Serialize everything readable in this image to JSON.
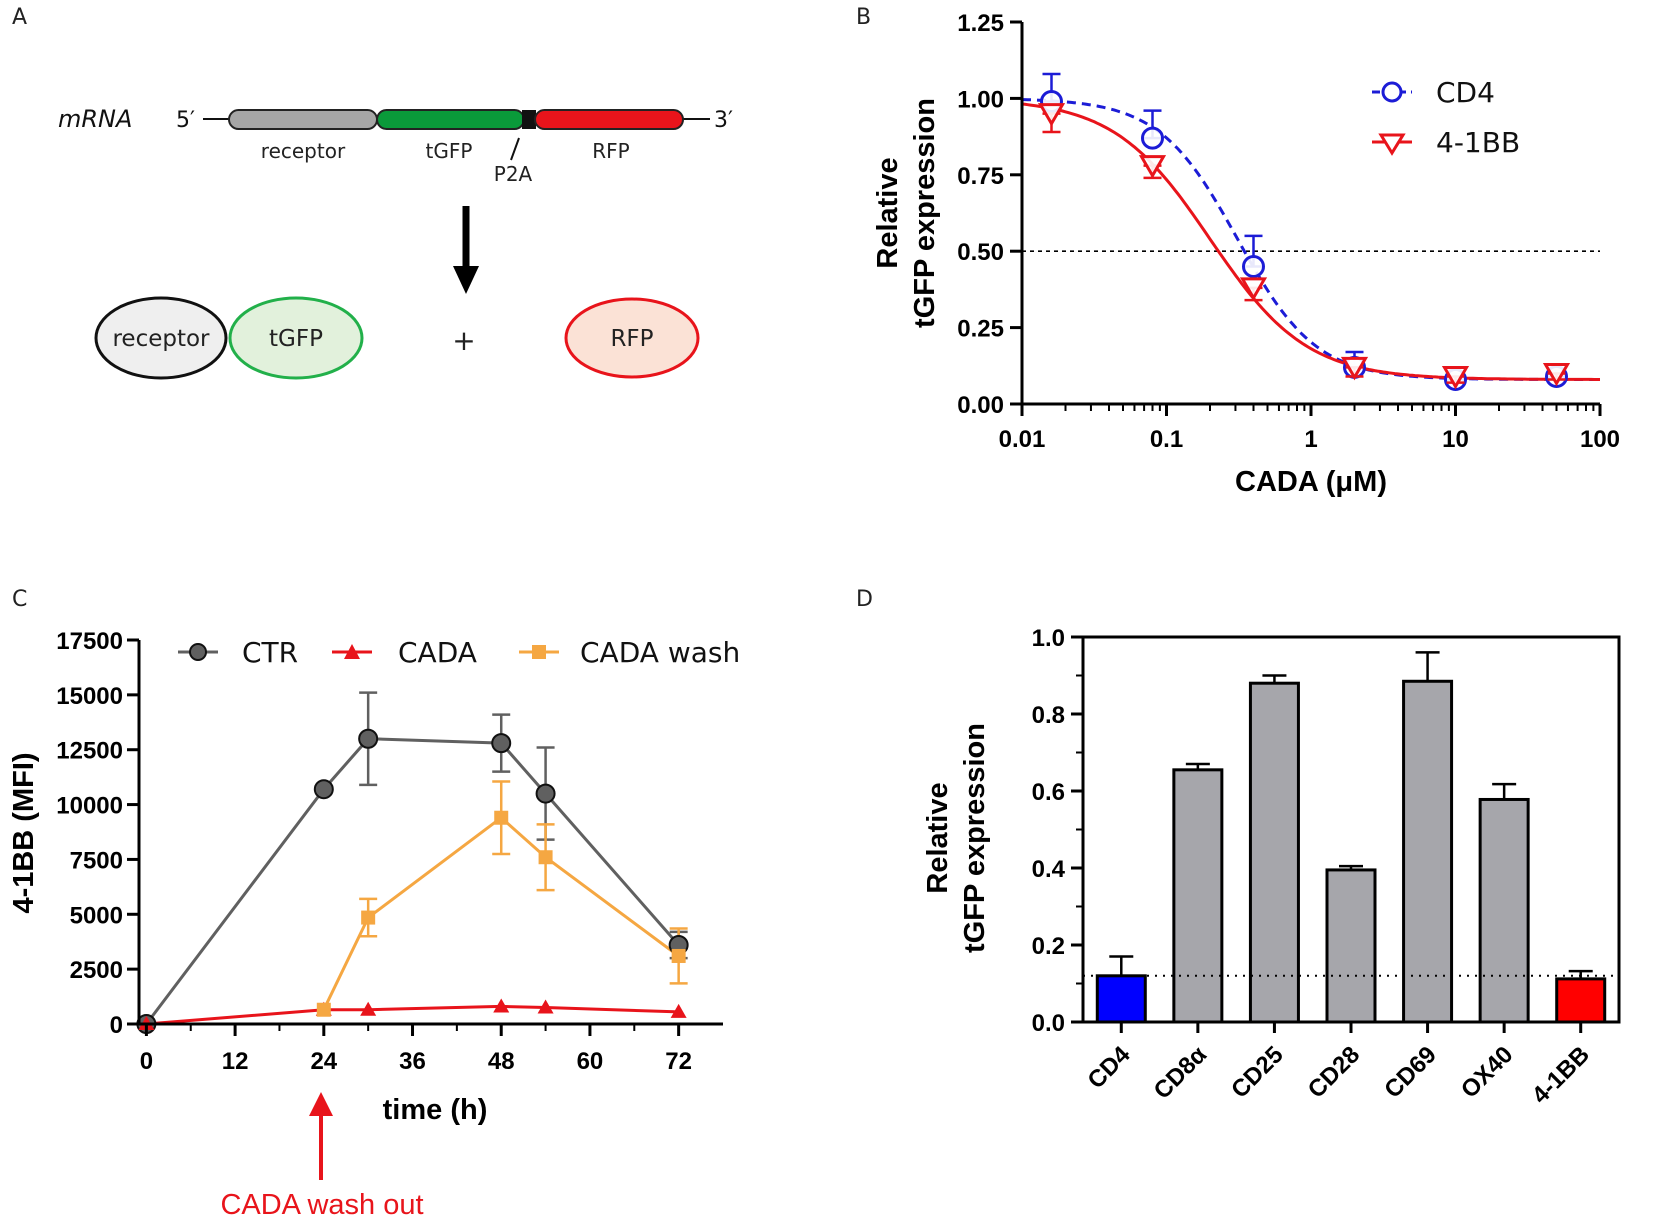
{
  "panel_labels": [
    "A",
    "B",
    "C",
    "D"
  ],
  "diagram_a": {
    "mrna_label": "mRNA",
    "five_prime": "5′",
    "three_prime": "3′",
    "segments": [
      "receptor",
      "tGFP",
      "P2A",
      "RFP"
    ],
    "products": {
      "receptor": "receptor",
      "tgfp": "tGFP",
      "plus": "+",
      "rfp": "RFP"
    },
    "colors": {
      "receptor": "#a6a6a6",
      "tgfp": "#0a9a3a",
      "rfp": "#e8141b"
    }
  },
  "chart_data": [
    {
      "panel": "B",
      "type": "line",
      "xscale": "log",
      "xlim": [
        0.01,
        100
      ],
      "ylim": [
        0,
        1.25
      ],
      "xlabel": "CADA (μM)",
      "ylabel_line1": "Relative",
      "ylabel_line2": "tGFP expression",
      "x_ticks": [
        0.01,
        0.1,
        1,
        10,
        100
      ],
      "x_tick_labels": [
        "0.01",
        "0.1",
        "1",
        "10",
        "100"
      ],
      "y_ticks": [
        0,
        0.25,
        0.5,
        0.75,
        1.0,
        1.25
      ],
      "y_tick_labels": [
        "0.00",
        "0.25",
        "0.50",
        "0.75",
        "1.00",
        "1.25"
      ],
      "reference_line": 0.5,
      "series": [
        {
          "name": "CD4",
          "color": "#1c1cd6",
          "marker": "circle",
          "dashed": true,
          "x": [
            0.016,
            0.08,
            0.4,
            2,
            10,
            50
          ],
          "y": [
            0.99,
            0.87,
            0.45,
            0.12,
            0.08,
            0.09
          ],
          "err": [
            0.09,
            0.09,
            0.1,
            0.05,
            0.02,
            0.02
          ],
          "fit": {
            "bottom": 0.08,
            "top": 1.0,
            "ic50": 0.31,
            "hill": 1.6
          }
        },
        {
          "name": "4-1BB",
          "color": "#e8141b",
          "marker": "triangle-down",
          "dashed": false,
          "x": [
            0.016,
            0.08,
            0.4,
            2,
            10,
            50
          ],
          "y": [
            0.95,
            0.78,
            0.38,
            0.12,
            0.09,
            0.1
          ],
          "err": [
            0.06,
            0.04,
            0.04,
            0.03,
            0.02,
            0.02
          ],
          "fit": {
            "bottom": 0.08,
            "top": 1.0,
            "ic50": 0.2,
            "hill": 1.3
          }
        }
      ]
    },
    {
      "panel": "C",
      "type": "line",
      "xlim": [
        -1,
        78
      ],
      "ylim": [
        0,
        17500
      ],
      "xlabel": "time (h)",
      "ylabel": "4-1BB (MFI)",
      "x_ticks": [
        0,
        12,
        24,
        36,
        48,
        60,
        72
      ],
      "x_tick_labels": [
        "0",
        "12",
        "24",
        "36",
        "48",
        "60",
        "72"
      ],
      "y_ticks": [
        0,
        2500,
        5000,
        7500,
        10000,
        12500,
        15000,
        17500
      ],
      "y_tick_labels": [
        "0",
        "2500",
        "5000",
        "7500",
        "10000",
        "12500",
        "15000",
        "17500"
      ],
      "annotation": {
        "text": "CADA wash out",
        "x": 24,
        "color": "#e8141b"
      },
      "series": [
        {
          "name": "CTR",
          "color": "#606060",
          "marker": "circle",
          "x": [
            0,
            24,
            30,
            48,
            54,
            72
          ],
          "y": [
            0,
            10700,
            13000,
            12800,
            10500,
            3600
          ],
          "err": [
            0,
            0,
            2100,
            1300,
            2100,
            600
          ]
        },
        {
          "name": "CADA",
          "color": "#e8141b",
          "marker": "triangle",
          "x": [
            0,
            24,
            30,
            48,
            54,
            72
          ],
          "y": [
            0,
            650,
            650,
            800,
            750,
            550
          ],
          "err": [
            0,
            0,
            0,
            0,
            0,
            0
          ]
        },
        {
          "name": "CADA wash",
          "color": "#f5a742",
          "marker": "square",
          "x": [
            24,
            30,
            48,
            54,
            72
          ],
          "y": [
            650,
            4850,
            9400,
            7600,
            3100
          ],
          "err": [
            0,
            850,
            1650,
            1500,
            1250
          ]
        }
      ]
    },
    {
      "panel": "D",
      "type": "bar",
      "ylim": [
        0,
        1.0
      ],
      "ylabel_line1": "Relative",
      "ylabel_line2": "tGFP expression",
      "y_ticks": [
        0,
        0.2,
        0.4,
        0.6,
        0.8,
        1.0
      ],
      "y_tick_labels": [
        "0.0",
        "0.2",
        "0.4",
        "0.6",
        "0.8",
        "1.0"
      ],
      "reference_line": 0.12,
      "categories": [
        "CD4",
        "CD8α",
        "CD25",
        "CD28",
        "CD69",
        "OX40",
        "4-1BB"
      ],
      "values": [
        0.12,
        0.655,
        0.88,
        0.395,
        0.885,
        0.578,
        0.112
      ],
      "errors": [
        0.05,
        0.015,
        0.02,
        0.01,
        0.075,
        0.04,
        0.02
      ],
      "colors": [
        "#0000ff",
        "#a6a6ab",
        "#a6a6ab",
        "#a6a6ab",
        "#a6a6ab",
        "#a6a6ab",
        "#ff0000"
      ]
    }
  ]
}
